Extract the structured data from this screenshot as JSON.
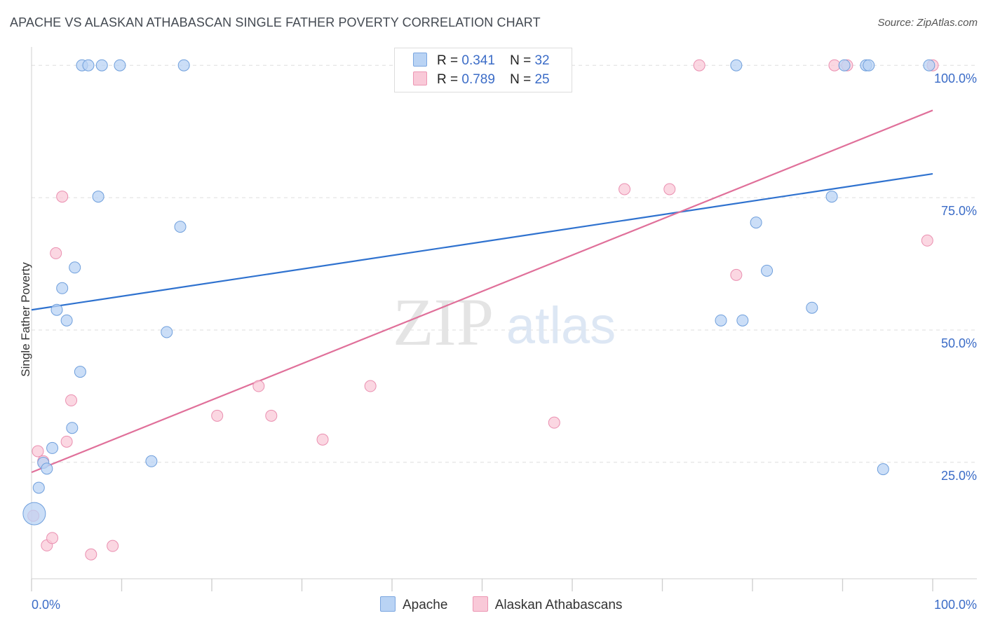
{
  "header": {
    "title": "APACHE VS ALASKAN ATHABASCAN SINGLE FATHER POVERTY CORRELATION CHART",
    "source": "Source: ZipAtlas.com"
  },
  "watermark": {
    "zip": "ZIP",
    "atlas": "atlas"
  },
  "legend": {
    "rows": [
      {
        "r_label": "R =",
        "r_value": "0.341",
        "n_label": "N =",
        "n_value": "32"
      },
      {
        "r_label": "R =",
        "r_value": "0.789",
        "n_label": "N =",
        "n_value": "25"
      }
    ]
  },
  "bottom_legend": {
    "items": [
      "Apache",
      "Alaskan Athabascans"
    ]
  },
  "colors": {
    "apache_fill": "#b9d3f4",
    "apache_stroke": "#6f9fdc",
    "apache_line": "#2f72cf",
    "alaskan_fill": "#f9c9d8",
    "alaskan_stroke": "#ea8fb0",
    "alaskan_line": "#e0709a",
    "axis_label": "#3b6cc7",
    "grid": "#dddddd"
  },
  "chart_data": {
    "type": "scatter",
    "title": "APACHE VS ALASKAN ATHABASCAN SINGLE FATHER POVERTY CORRELATION CHART",
    "xlabel": "",
    "ylabel": "Single Father Poverty",
    "xlim": [
      0,
      100
    ],
    "ylim": [
      3,
      104
    ],
    "x_tick_labels": [
      "0.0%",
      "100.0%"
    ],
    "y_ticks": [
      25,
      50,
      75,
      100
    ],
    "y_tick_labels": [
      "25.0%",
      "50.0%",
      "75.0%",
      "100.0%"
    ],
    "series": [
      {
        "name": "Apache",
        "r": 0.341,
        "n": 32,
        "trend": {
          "x": [
            0,
            100
          ],
          "y": [
            53.8,
            79.5
          ]
        },
        "points": [
          {
            "x": 0.3,
            "y": 15.3,
            "big": true
          },
          {
            "x": 0.8,
            "y": 20.2
          },
          {
            "x": 1.3,
            "y": 24.9
          },
          {
            "x": 1.7,
            "y": 23.8
          },
          {
            "x": 2.3,
            "y": 27.7
          },
          {
            "x": 2.8,
            "y": 53.8
          },
          {
            "x": 3.4,
            "y": 57.9
          },
          {
            "x": 3.9,
            "y": 51.8
          },
          {
            "x": 4.5,
            "y": 31.5
          },
          {
            "x": 4.8,
            "y": 61.8
          },
          {
            "x": 5.4,
            "y": 42.1
          },
          {
            "x": 5.6,
            "y": 100
          },
          {
            "x": 6.3,
            "y": 100
          },
          {
            "x": 7.4,
            "y": 75.2
          },
          {
            "x": 7.8,
            "y": 100
          },
          {
            "x": 9.8,
            "y": 100
          },
          {
            "x": 13.3,
            "y": 25.2
          },
          {
            "x": 15.0,
            "y": 49.6
          },
          {
            "x": 16.5,
            "y": 69.5
          },
          {
            "x": 16.9,
            "y": 100
          },
          {
            "x": 76.5,
            "y": 51.8
          },
          {
            "x": 78.2,
            "y": 100
          },
          {
            "x": 78.9,
            "y": 51.8
          },
          {
            "x": 80.4,
            "y": 70.3
          },
          {
            "x": 81.6,
            "y": 61.2
          },
          {
            "x": 86.6,
            "y": 54.2
          },
          {
            "x": 88.8,
            "y": 75.2
          },
          {
            "x": 90.2,
            "y": 100
          },
          {
            "x": 92.6,
            "y": 100
          },
          {
            "x": 92.9,
            "y": 100
          },
          {
            "x": 94.5,
            "y": 23.7
          },
          {
            "x": 99.6,
            "y": 100
          }
        ]
      },
      {
        "name": "Alaskan Athabascans",
        "r": 0.789,
        "n": 25,
        "trend": {
          "x": [
            0,
            100
          ],
          "y": [
            23.1,
            91.5
          ]
        },
        "points": [
          {
            "x": 0.2,
            "y": 14.9
          },
          {
            "x": 0.7,
            "y": 27.1
          },
          {
            "x": 1.3,
            "y": 25.2
          },
          {
            "x": 1.7,
            "y": 9.3
          },
          {
            "x": 2.3,
            "y": 10.7
          },
          {
            "x": 2.7,
            "y": 64.5
          },
          {
            "x": 3.4,
            "y": 75.2
          },
          {
            "x": 3.9,
            "y": 28.9
          },
          {
            "x": 4.4,
            "y": 36.7
          },
          {
            "x": 6.6,
            "y": 7.6
          },
          {
            "x": 9.0,
            "y": 9.2
          },
          {
            "x": 20.6,
            "y": 33.8
          },
          {
            "x": 25.2,
            "y": 39.4
          },
          {
            "x": 26.6,
            "y": 33.8
          },
          {
            "x": 32.3,
            "y": 29.3
          },
          {
            "x": 37.6,
            "y": 39.4
          },
          {
            "x": 58.0,
            "y": 32.5
          },
          {
            "x": 65.8,
            "y": 76.6
          },
          {
            "x": 70.8,
            "y": 76.6
          },
          {
            "x": 74.1,
            "y": 100
          },
          {
            "x": 78.2,
            "y": 60.4
          },
          {
            "x": 89.1,
            "y": 100
          },
          {
            "x": 90.5,
            "y": 100
          },
          {
            "x": 99.4,
            "y": 66.9
          },
          {
            "x": 100.0,
            "y": 100
          }
        ]
      }
    ]
  }
}
